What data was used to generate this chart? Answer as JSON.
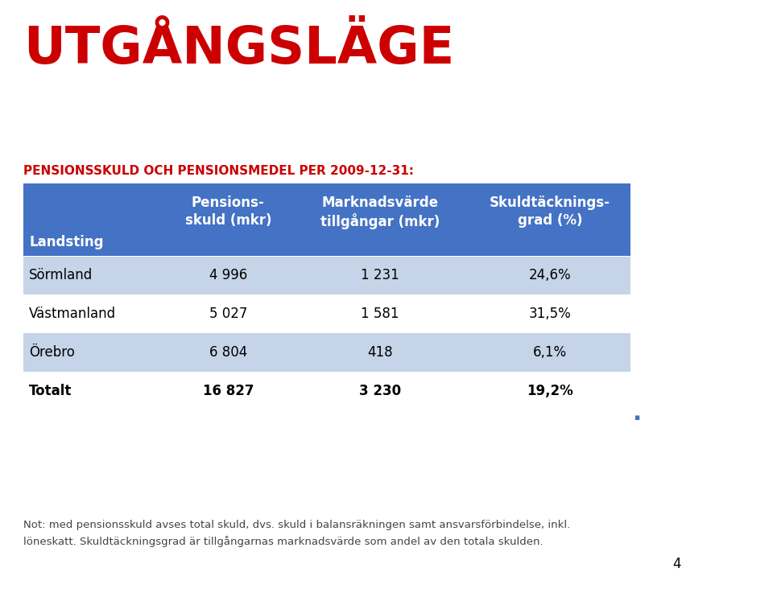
{
  "title": "UTGÅNGSLÄGE",
  "subtitle": "PENSIONSSKULD OCH PENSIONSMEDEL PER 2009-12-31:",
  "title_color": "#CC0000",
  "subtitle_color": "#CC0000",
  "table": {
    "header_bg": "#4472C4",
    "header_text_color": "#FFFFFF",
    "row_bg_light": "#C5D4E8",
    "row_bg_white": "#FFFFFF",
    "col_headers_line1": [
      "Pensions-",
      "Marknadsvärde",
      "Skuldtäcknings-"
    ],
    "col_headers_line2": [
      "skuld (mkr)",
      "tillgångar (mkr)",
      "grad (%)"
    ],
    "row_header": "Landsting",
    "rows": [
      {
        "cells": [
          "Sörmland",
          "4 996",
          "1 231",
          "24,6%"
        ],
        "bg": "#C5D4E8",
        "bold": false
      },
      {
        "cells": [
          "Västmanland",
          "5 027",
          "1 581",
          "31,5%"
        ],
        "bg": "#FFFFFF",
        "bold": false
      },
      {
        "cells": [
          "Örebro",
          "6 804",
          "418",
          "6,1%"
        ],
        "bg": "#C5D4E8",
        "bold": false
      },
      {
        "cells": [
          "Totalt",
          "16 827",
          "3 230",
          "19,2%"
        ],
        "bg": "#FFFFFF",
        "bold": true
      }
    ]
  },
  "footer_text": "Not: med pensionsskuld avses total skuld, dvs. skuld i balansräkningen samt ansvarsförbindelse, inkl.\nlöneskatt. Skuldtäckningsgrad är tillgångarnas marknadsvärde som andel av den totala skulden.",
  "page_number": "4",
  "right_bar_color": "#CC0000",
  "right_bar_black": "#000000",
  "background_color": "#FFFFFF"
}
